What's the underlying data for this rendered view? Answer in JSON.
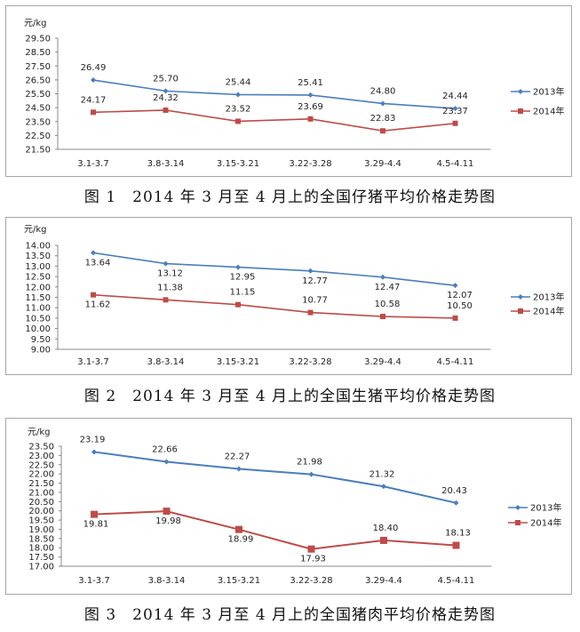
{
  "chart_data": [
    {
      "type": "line",
      "unit": "元/kg",
      "caption": "图 1　2014 年 3 月至 4 月上的全国仔猪平均价格走势图",
      "categories": [
        "3.1-3.7",
        "3.8-3.14",
        "3.15-3.21",
        "3.22-3.28",
        "3.29-4.4",
        "4.5-4.11"
      ],
      "ylim": [
        21.5,
        29.5
      ],
      "yticks": [
        "29.50",
        "28.50",
        "27.50",
        "26.50",
        "25.50",
        "24.50",
        "23.50",
        "22.50",
        "21.50"
      ],
      "series": [
        {
          "name": "2013年",
          "color": "#4a7ebb",
          "marker": "diamond",
          "values": [
            26.49,
            25.7,
            25.44,
            25.41,
            24.8,
            24.44
          ],
          "labels": [
            "26.49",
            "25.70",
            "25.44",
            "25.41",
            "24.80",
            "24.44"
          ]
        },
        {
          "name": "2014年",
          "color": "#be4b48",
          "marker": "square",
          "values": [
            24.17,
            24.32,
            23.52,
            23.69,
            22.83,
            23.37
          ],
          "labels": [
            "24.17",
            "24.32",
            "23.52",
            "23.69",
            "22.83",
            "23.37"
          ]
        }
      ],
      "legend": "right"
    },
    {
      "type": "line",
      "unit": "元/kg",
      "caption": "图 2　2014 年 3 月至 4 月上的全国生猪平均价格走势图",
      "categories": [
        "3.1-3.7",
        "3.8-3.14",
        "3.15-3.21",
        "3.22-3.28",
        "3.29-4.4",
        "4.5-4.11"
      ],
      "ylim": [
        9.0,
        14.0
      ],
      "yticks": [
        "14.00",
        "13.50",
        "13.00",
        "12.50",
        "12.00",
        "11.50",
        "11.00",
        "10.50",
        "10.00",
        "9.50",
        "9.00"
      ],
      "series": [
        {
          "name": "2013年",
          "color": "#4a7ebb",
          "marker": "diamond",
          "values": [
            13.64,
            13.12,
            12.95,
            12.77,
            12.47,
            12.07
          ],
          "labels": [
            "13.64",
            "13.12",
            "12.95",
            "12.77",
            "12.47",
            "12.07"
          ]
        },
        {
          "name": "2014年",
          "color": "#be4b48",
          "marker": "square",
          "values": [
            11.62,
            11.38,
            11.15,
            10.77,
            10.58,
            10.5
          ],
          "labels": [
            "11.62",
            "11.38",
            "11.15",
            "10.77",
            "10.58",
            "10.50"
          ]
        }
      ],
      "legend": "right"
    },
    {
      "type": "line",
      "unit": "元/kg",
      "caption": "图 3　2014 年 3 月至 4 月上的全国猪肉平均价格走势图",
      "categories": [
        "3.1-3.7",
        "3.8-3.14",
        "3.15-3.21",
        "3.22-3.28",
        "3.29-4.4",
        "4.5-4.11"
      ],
      "ylim": [
        17.0,
        23.5
      ],
      "yticks": [
        "23.50",
        "23.00",
        "22.50",
        "22.00",
        "21.50",
        "21.00",
        "20.50",
        "20.00",
        "19.50",
        "19.00",
        "18.50",
        "18.00",
        "17.50",
        "17.00"
      ],
      "series": [
        {
          "name": "2013年",
          "color": "#4a7ebb",
          "marker": "diamond",
          "values": [
            23.19,
            22.66,
            22.27,
            21.98,
            21.32,
            20.43
          ],
          "labels": [
            "23.19",
            "22.66",
            "22.27",
            "21.98",
            "21.32",
            "20.43"
          ]
        },
        {
          "name": "2014年",
          "color": "#be4b48",
          "marker": "square",
          "values": [
            19.81,
            19.98,
            18.99,
            17.93,
            18.4,
            18.13
          ],
          "labels": [
            "19.81",
            "19.98",
            "18.99",
            "17.93",
            "18.40",
            "18.13"
          ]
        }
      ],
      "legend": "right"
    }
  ]
}
